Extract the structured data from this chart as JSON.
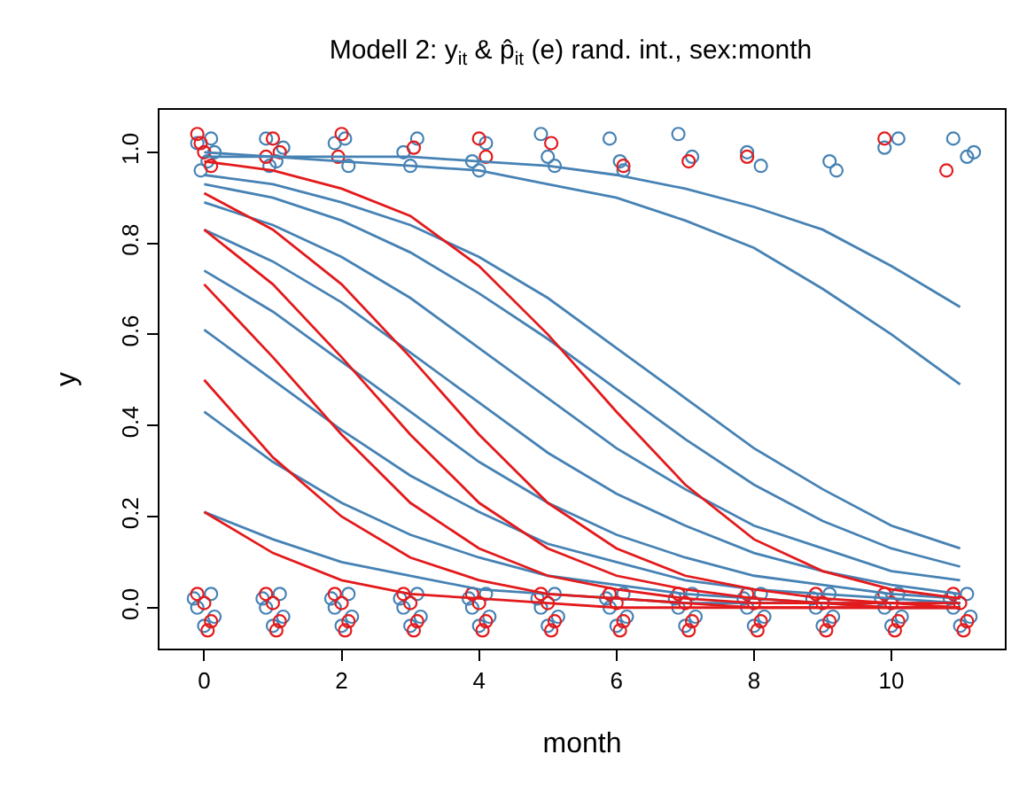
{
  "chart_data": {
    "type": "line",
    "title": "Modell 2: y$_{it}$ & p̂$_{it}$ (e) rand. int., sex:month",
    "xlabel": "month",
    "ylabel": "y",
    "xlim": [
      -0.65,
      11.65
    ],
    "xticks": [
      0,
      2,
      4,
      6,
      8,
      10
    ],
    "ylim": [
      -0.09,
      1.093
    ],
    "yticks": [
      {
        "value": 0,
        "label": "0.0"
      },
      0.2,
      0.4,
      0.6,
      0.8,
      {
        "value": 1,
        "label": "1.0"
      }
    ],
    "grid": false,
    "line_style": "solid",
    "marker": "none",
    "x": [
      0,
      1,
      2,
      3,
      4,
      5,
      6,
      7,
      8,
      9,
      10,
      11
    ],
    "series": [
      {
        "type": "scatter",
        "marker": "circle",
        "color": "#4682b4",
        "x": [
          -0.1,
          0.05,
          0.1,
          -0.05,
          0.15,
          0.9,
          1.05,
          1.15,
          0.95,
          1.9,
          2.1,
          2.05,
          2.9,
          3.1,
          3.0,
          3.9,
          4.1,
          4.0,
          4.9,
          5.1,
          5.0,
          5.9,
          6.05,
          6.1,
          6.9,
          7.1,
          7.9,
          8.1,
          9.1,
          9.2,
          10.1,
          9.9,
          10.9,
          11.1,
          11.2,
          -0.1,
          0.1,
          0,
          0.15,
          -0.15,
          0.9,
          1.1,
          1,
          1.15,
          0.85,
          1.9,
          2.1,
          2,
          2.15,
          1.85,
          2.9,
          3.1,
          3,
          3.15,
          2.85,
          3.9,
          4.1,
          4,
          4.15,
          3.85,
          4.9,
          5.1,
          5,
          5.15,
          4.85,
          5.9,
          6.1,
          6,
          6.15,
          5.85,
          6.9,
          7.1,
          7,
          7.15,
          6.85,
          7.9,
          8.1,
          8,
          8.15,
          7.85,
          8.9,
          9.1,
          9,
          9.15,
          8.85,
          9.9,
          10.1,
          10,
          10.15,
          9.85,
          10.9,
          11.1,
          11,
          11.15,
          10.85
        ],
        "values": [
          1.02,
          0.98,
          1.03,
          0.96,
          1.0,
          1.03,
          0.98,
          1.01,
          0.97,
          1.02,
          0.97,
          1.03,
          1.0,
          1.03,
          0.97,
          0.98,
          1.02,
          0.96,
          1.04,
          0.97,
          0.99,
          1.03,
          0.98,
          0.96,
          1.04,
          0.99,
          1.0,
          0.97,
          0.98,
          0.96,
          1.03,
          1.01,
          1.03,
          0.99,
          1.0,
          0.0,
          0.03,
          -0.04,
          -0.02,
          0.02,
          0.0,
          0.03,
          -0.04,
          -0.02,
          0.02,
          0.0,
          0.03,
          -0.04,
          -0.02,
          0.02,
          0.0,
          0.03,
          -0.04,
          -0.02,
          0.02,
          0.0,
          0.03,
          -0.04,
          -0.02,
          0.02,
          0.0,
          0.03,
          -0.04,
          -0.02,
          0.02,
          0.0,
          0.03,
          -0.04,
          -0.02,
          0.02,
          0.0,
          0.03,
          -0.04,
          -0.02,
          0.02,
          0.0,
          0.03,
          -0.04,
          -0.02,
          0.02,
          0.0,
          0.03,
          -0.04,
          -0.02,
          0.02,
          0.0,
          0.03,
          -0.04,
          -0.02,
          0.02,
          0.0,
          0.03,
          -0.04,
          -0.02,
          0.02
        ]
      },
      {
        "type": "scatter",
        "marker": "circle",
        "color": "#e31a1c",
        "x": [
          -0.1,
          0.0,
          0.1,
          -0.05,
          1.0,
          0.9,
          1.1,
          2.0,
          1.95,
          3.05,
          4.0,
          4.1,
          5.05,
          6.1,
          7.05,
          7.9,
          9.9,
          10.8,
          0,
          0.1,
          -0.1,
          0.05,
          1,
          1.1,
          0.9,
          1.05,
          2,
          2.1,
          1.9,
          2.05,
          3,
          3.1,
          2.9,
          3.05,
          4,
          4.1,
          3.9,
          4.05,
          5,
          5.1,
          4.9,
          5.05,
          6,
          6.1,
          5.9,
          6.05,
          7,
          7.1,
          6.9,
          7.05,
          8,
          8.1,
          7.9,
          8.05,
          9,
          9.1,
          8.9,
          9.05,
          10,
          10.1,
          9.9,
          10.05,
          11,
          11.1,
          10.9,
          11.05
        ],
        "values": [
          1.04,
          1.0,
          0.97,
          1.02,
          1.03,
          0.99,
          1.0,
          1.04,
          0.99,
          1.01,
          1.03,
          0.99,
          1.02,
          0.97,
          0.98,
          0.99,
          1.03,
          0.96,
          0.01,
          -0.03,
          0.03,
          -0.05,
          0.01,
          -0.03,
          0.03,
          -0.05,
          0.01,
          -0.03,
          0.03,
          -0.05,
          0.01,
          -0.03,
          0.03,
          -0.05,
          0.01,
          -0.03,
          0.03,
          -0.05,
          0.01,
          -0.03,
          0.03,
          -0.05,
          0.01,
          -0.03,
          0.03,
          -0.05,
          0.01,
          -0.03,
          0.03,
          -0.05,
          0.01,
          -0.03,
          0.03,
          -0.05,
          0.01,
          -0.03,
          0.03,
          -0.05,
          0.01,
          -0.03,
          0.03,
          -0.05,
          0.01,
          -0.03,
          0.03,
          -0.05
        ]
      },
      {
        "color": "#4682b4",
        "values": [
          1.0,
          0.99,
          0.99,
          0.99,
          0.98,
          0.97,
          0.95,
          0.92,
          0.88,
          0.83,
          0.75,
          0.66
        ]
      },
      {
        "color": "#4682b4",
        "values": [
          0.99,
          0.99,
          0.98,
          0.97,
          0.96,
          0.93,
          0.9,
          0.85,
          0.79,
          0.7,
          0.6,
          0.49
        ]
      },
      {
        "color": "#4682b4",
        "values": [
          0.95,
          0.93,
          0.89,
          0.84,
          0.77,
          0.68,
          0.57,
          0.46,
          0.35,
          0.26,
          0.18,
          0.13
        ]
      },
      {
        "color": "#4682b4",
        "values": [
          0.93,
          0.9,
          0.85,
          0.78,
          0.69,
          0.59,
          0.48,
          0.37,
          0.27,
          0.19,
          0.13,
          0.09
        ]
      },
      {
        "color": "#4682b4",
        "values": [
          0.89,
          0.84,
          0.77,
          0.68,
          0.57,
          0.46,
          0.35,
          0.26,
          0.18,
          0.13,
          0.08,
          0.06
        ]
      },
      {
        "color": "#4682b4",
        "values": [
          0.83,
          0.76,
          0.67,
          0.56,
          0.45,
          0.34,
          0.25,
          0.18,
          0.12,
          0.08,
          0.05,
          0.03
        ]
      },
      {
        "color": "#4682b4",
        "values": [
          0.74,
          0.65,
          0.54,
          0.43,
          0.32,
          0.23,
          0.16,
          0.11,
          0.07,
          0.05,
          0.03,
          0.02
        ]
      },
      {
        "color": "#4682b4",
        "values": [
          0.61,
          0.5,
          0.39,
          0.29,
          0.21,
          0.14,
          0.1,
          0.06,
          0.04,
          0.03,
          0.02,
          0.01
        ]
      },
      {
        "color": "#4682b4",
        "values": [
          0.43,
          0.32,
          0.23,
          0.16,
          0.11,
          0.07,
          0.05,
          0.03,
          0.02,
          0.01,
          0.01,
          0.01
        ]
      },
      {
        "color": "#4682b4",
        "values": [
          0.21,
          0.15,
          0.1,
          0.07,
          0.04,
          0.03,
          0.02,
          0.01,
          0.01,
          0.01,
          0.0,
          0.0
        ]
      },
      {
        "color": "#e31a1c",
        "values": [
          0.98,
          0.96,
          0.92,
          0.86,
          0.75,
          0.6,
          0.43,
          0.27,
          0.15,
          0.08,
          0.04,
          0.02
        ]
      },
      {
        "color": "#e31a1c",
        "values": [
          0.91,
          0.83,
          0.71,
          0.55,
          0.38,
          0.23,
          0.13,
          0.07,
          0.04,
          0.02,
          0.01,
          0.01
        ]
      },
      {
        "color": "#e31a1c",
        "values": [
          0.83,
          0.71,
          0.55,
          0.38,
          0.23,
          0.13,
          0.07,
          0.04,
          0.02,
          0.01,
          0.01,
          0.0
        ]
      },
      {
        "color": "#e31a1c",
        "values": [
          0.71,
          0.55,
          0.38,
          0.23,
          0.13,
          0.07,
          0.04,
          0.02,
          0.01,
          0.01,
          0.0,
          0.0
        ]
      },
      {
        "color": "#e31a1c",
        "values": [
          0.5,
          0.33,
          0.2,
          0.11,
          0.06,
          0.03,
          0.02,
          0.01,
          0.0,
          0.0,
          0.0,
          0.0
        ]
      },
      {
        "color": "#e31a1c",
        "values": [
          0.21,
          0.12,
          0.06,
          0.03,
          0.02,
          0.01,
          0.0,
          0.0,
          0.0,
          0.0,
          0.0,
          0.0
        ]
      }
    ]
  }
}
